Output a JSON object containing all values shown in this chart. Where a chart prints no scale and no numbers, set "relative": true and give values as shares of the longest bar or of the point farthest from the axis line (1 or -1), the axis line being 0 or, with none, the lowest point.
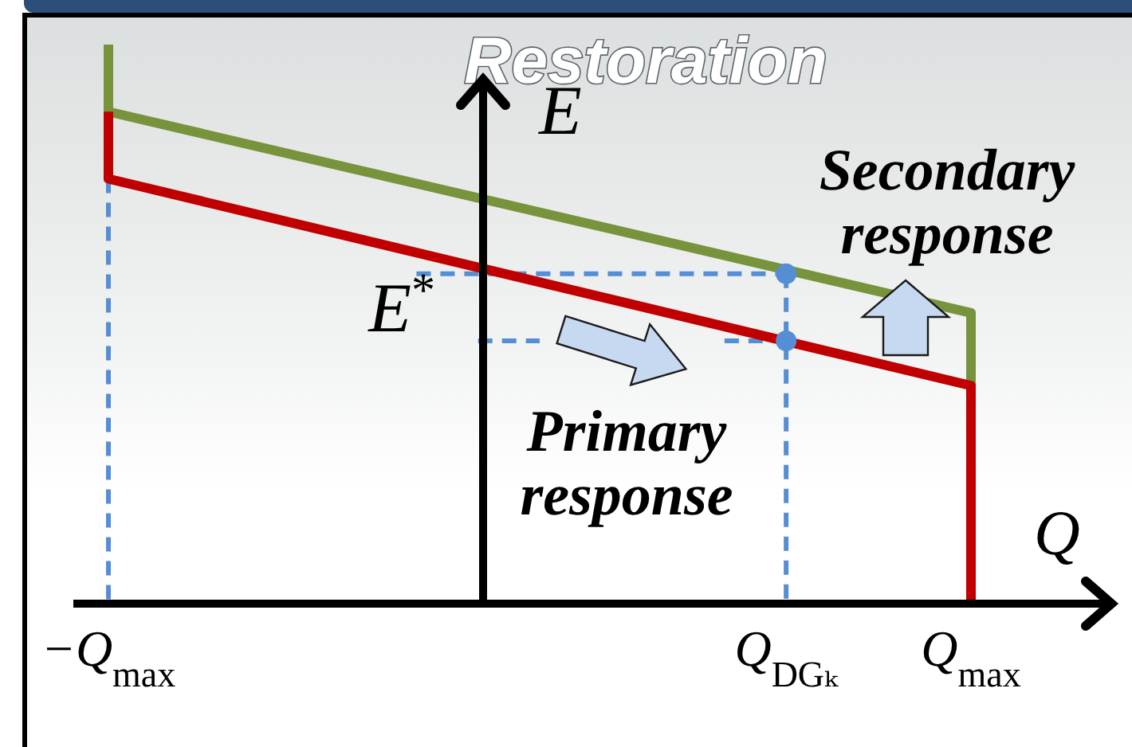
{
  "chart_data": {
    "type": "line",
    "title": "Restoration",
    "xlabel": "Q",
    "ylabel": "E",
    "relative": true,
    "categories": [
      "−Q$_{max}$",
      null,
      null,
      null,
      null,
      null,
      null,
      null,
      null,
      null,
      null,
      "Q$_{DGₖ}$",
      null,
      null,
      "Q$_{max}$"
    ],
    "series": [
      {
        "color": "#558ed5",
        "line_style": "dashed",
        "x": [
          "−Q$_{max}$",
          "−Q$_{max}$"
        ],
        "values": [
          0.76,
          0
        ]
      },
      {
        "color": "#558ed5",
        "line_style": "dashed",
        "values": [
          null,
          null,
          null,
          null,
          null,
          0.59,
          0.59,
          0.59,
          0.59,
          0.59,
          0.59,
          0.59,
          null,
          null,
          null
        ]
      },
      {
        "color": "#558ed5",
        "line_style": "dashed",
        "values": [
          null,
          null,
          null,
          null,
          null,
          null,
          0.47,
          0.47,
          null,
          null,
          0.47,
          0.47,
          null,
          null,
          null
        ]
      },
      {
        "color": "#558ed5",
        "line_style": "dashed",
        "x": [
          "Q$_{DGₖ}$",
          "Q$_{DGₖ}$"
        ],
        "values": [
          0.59,
          0
        ]
      },
      {
        "color": "#77933c",
        "line_style": "solid",
        "x": [
          "−Q$_{max}$",
          "−Q$_{max}$",
          "Q$_{max}$",
          "Q$_{max}$"
        ],
        "values": [
          1,
          0.88,
          0.52,
          0.39
        ]
      },
      {
        "color": "#c00000",
        "line_style": "solid",
        "x": [
          "−Q$_{max}$",
          "−Q$_{max}$",
          "Q$_{max}$",
          "Q$_{max}$"
        ],
        "values": [
          0.88,
          0.76,
          0.39,
          0
        ]
      },
      {
        "type": "scatter",
        "color": "#558ed5",
        "marker": "circle",
        "x": [
          "Q$_{DGₖ}$",
          "Q$_{DGₖ}$"
        ],
        "values": [
          0.59,
          0.47
        ]
      }
    ],
    "annotations": [
      "Secondary response",
      "Primary response",
      "E$^{*}$"
    ]
  }
}
